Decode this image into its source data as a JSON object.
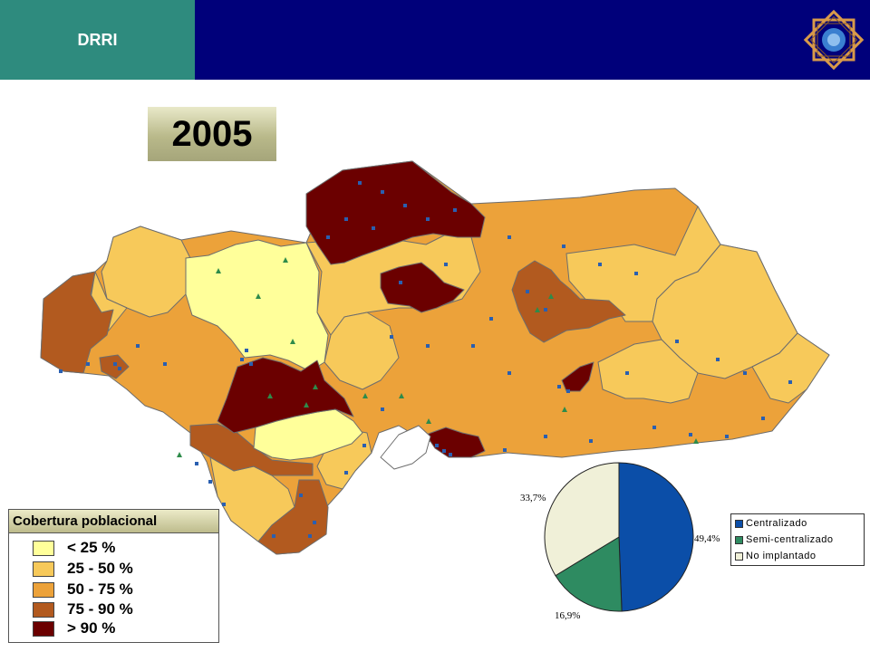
{
  "header": {
    "tab_label": "DRRI",
    "background": "#00007a",
    "tab_color": "#2e8b7e"
  },
  "year": "2005",
  "legend": {
    "title": "Cobertura poblacional",
    "items": [
      {
        "label": "< 25 %",
        "color": "#ffff9a"
      },
      {
        "label": "25 - 50 %",
        "color": "#f7c95a"
      },
      {
        "label": "50 - 75 %",
        "color": "#eca23a"
      },
      {
        "label": "75 - 90 %",
        "color": "#b25a1f"
      },
      {
        "label": "> 90 %",
        "color": "#6b0000"
      }
    ]
  },
  "pie_chart": {
    "slices": [
      {
        "name": "Centralizado",
        "value": 49.4,
        "label": "49,4%",
        "color": "#0b4ea8"
      },
      {
        "name": "Semi-centralizado",
        "value": 16.9,
        "label": "16,9%",
        "color": "#2e8b61"
      },
      {
        "name": "No implantado",
        "value": 33.7,
        "label": "33,7%",
        "color": "#f0f0d8"
      }
    ]
  }
}
